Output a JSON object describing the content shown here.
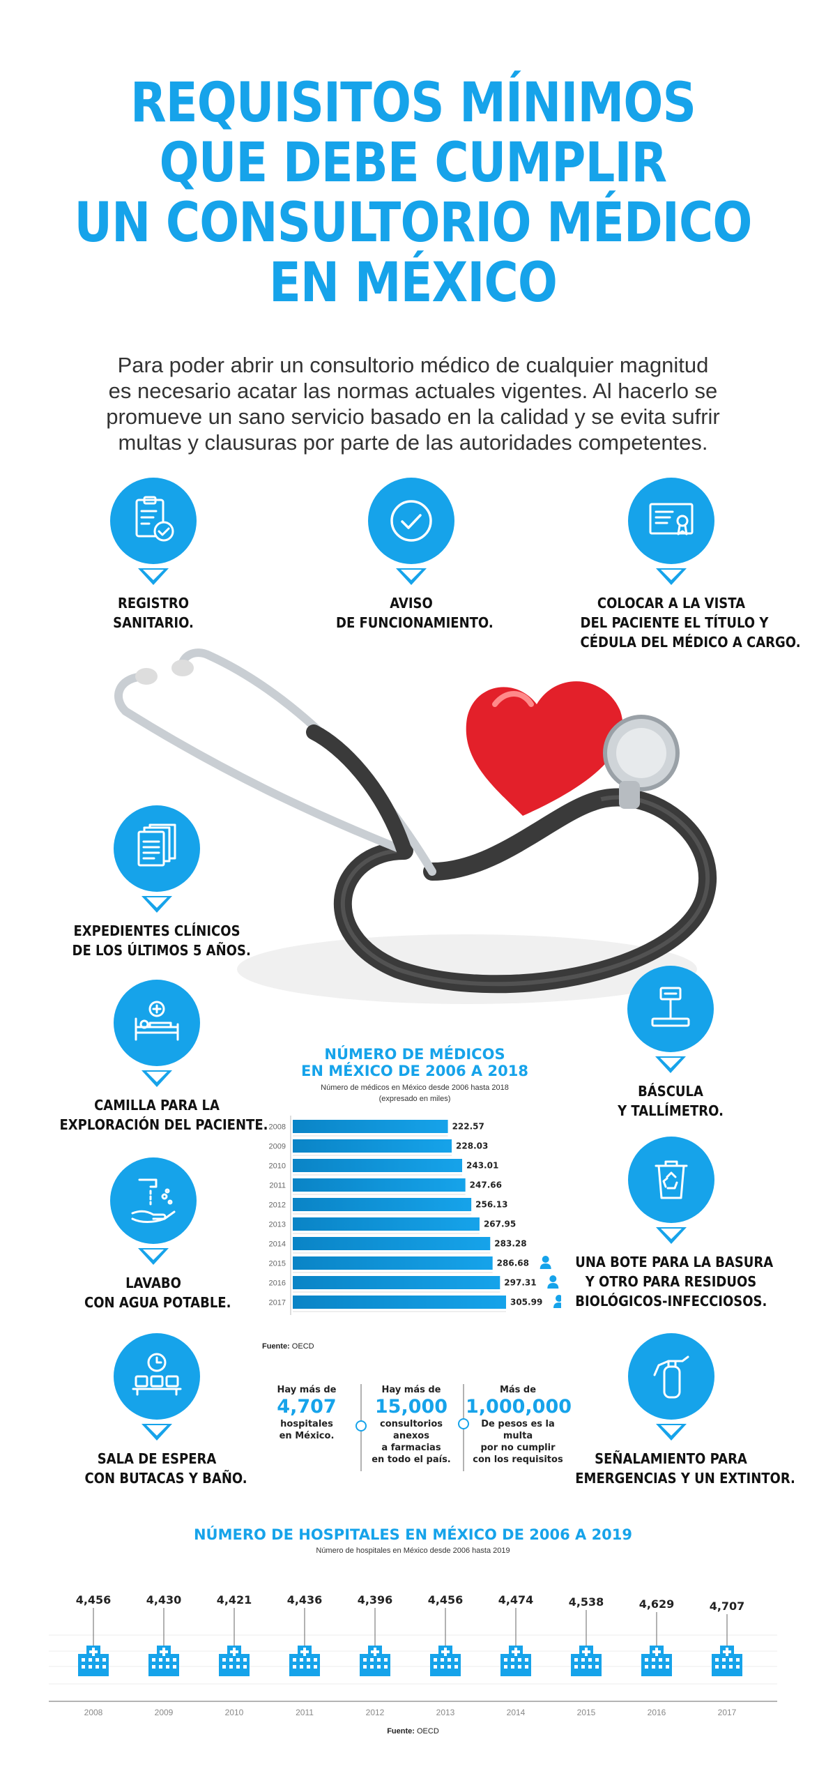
{
  "title": {
    "lines": [
      "REQUISITOS MÍNIMOS",
      "QUE DEBE CUMPLIR",
      "UN CONSULTORIO MÉDICO",
      "EN MÉXICO"
    ]
  },
  "intro": {
    "lines": [
      "Para poder abrir un consultorio médico de cualquier magnitud",
      "es necesario acatar las normas actuales vigentes. Al hacerlo se",
      "promueve un sano servicio basado en la calidad y se evita sufrir",
      "multas y clausuras por parte de las autoridades competentes."
    ]
  },
  "requirements": [
    {
      "icon": "clipboard-check-icon",
      "lines": [
        "REGISTRO",
        "SANITARIO."
      ]
    },
    {
      "icon": "checkmark-circle-icon",
      "lines": [
        "AVISO",
        "DE FUNCIONAMIENTO."
      ]
    },
    {
      "icon": "certificate-icon",
      "lines": [
        "COLOCAR A LA VISTA",
        "DEL PACIENTE EL TÍTULO Y",
        "CÉDULA DEL MÉDICO A CARGO."
      ]
    },
    {
      "icon": "documents-icon",
      "lines": [
        "EXPEDIENTES CLÍNICOS",
        "DE LOS ÚLTIMOS 5 AÑOS."
      ]
    },
    {
      "icon": "scale-icon",
      "lines": [
        "BÁSCULA",
        "Y TALLÍMETRO."
      ]
    },
    {
      "icon": "hospital-bed-icon",
      "lines": [
        "CAMILLA PARA LA",
        "EXPLORACIÓN DEL PACIENTE."
      ]
    },
    {
      "icon": "recycle-bin-icon",
      "lines": [
        "UNA BOTE PARA LA BASURA",
        "Y OTRO PARA RESIDUOS",
        "BIOLÓGICOS-INFECCIOSOS."
      ]
    },
    {
      "icon": "hand-washing-icon",
      "lines": [
        "LAVABO",
        "CON AGUA POTABLE."
      ]
    },
    {
      "icon": "waiting-room-icon",
      "lines": [
        "SALA DE ESPERA",
        "CON BUTACAS Y BAÑO."
      ]
    },
    {
      "icon": "fire-extinguisher-icon",
      "lines": [
        "SEÑALAMIENTO PARA",
        "EMERGENCIAS Y UN EXTINTOR."
      ]
    }
  ],
  "stats": [
    {
      "pre": "Hay más de",
      "big": "4,707",
      "lines": [
        "hospitales",
        "en México."
      ]
    },
    {
      "pre": "Hay más de",
      "big": "15,000",
      "lines": [
        "consultorios anexos",
        "a farmacias",
        "en todo el país."
      ]
    },
    {
      "pre": "Más de",
      "big": "1,000,000",
      "lines": [
        "De pesos es la multa",
        "por no cumplir",
        "con los requisitos"
      ]
    }
  ],
  "chart_data": [
    {
      "type": "bar",
      "orientation": "horizontal",
      "title": "NÚMERO DE MÉDICOS EN MÉXICO DE 2006 A 2018",
      "title_lines": [
        "NÚMERO DE MÉDICOS",
        "EN MÉXICO DE 2006 A 2018"
      ],
      "subtitle_lines": [
        "Número de médicos en México desde 2006 hasta 2018",
        "(expresado en miles)"
      ],
      "categories": [
        "2008",
        "2009",
        "2010",
        "2011",
        "2012",
        "2013",
        "2014",
        "2015",
        "2016",
        "2017"
      ],
      "values": [
        222.57,
        228.03,
        243.01,
        247.66,
        256.13,
        267.95,
        283.28,
        286.68,
        297.31,
        305.99
      ],
      "value_labels": [
        "222.57",
        "228.03",
        "243.01",
        "247.66",
        "256.13",
        "267.95",
        "283.28",
        "286.68",
        "297.31",
        "305.99"
      ],
      "xlim": [
        0,
        330
      ],
      "color": "#16a3ea",
      "source_label": "Fuente:",
      "source": "OECD"
    },
    {
      "type": "scatter",
      "title": "NÚMERO DE HOSPITALES EN MÉXICO DE 2006 A 2019",
      "subtitle": "Número de hospitales en México desde 2006 hasta 2019",
      "x": [
        "2008",
        "2009",
        "2010",
        "2011",
        "2012",
        "2013",
        "2014",
        "2015",
        "2016",
        "2017"
      ],
      "values": [
        4456,
        4430,
        4421,
        4436,
        4396,
        4456,
        4474,
        4538,
        4629,
        4707
      ],
      "value_labels": [
        "4,456",
        "4,430",
        "4,421",
        "4,436",
        "4,396",
        "4,456",
        "4,474",
        "4,538",
        "4,629",
        "4,707"
      ],
      "ylim": [
        4380,
        4720
      ],
      "color": "#16a3ea",
      "source_label": "Fuente:",
      "source": "OECD"
    }
  ]
}
